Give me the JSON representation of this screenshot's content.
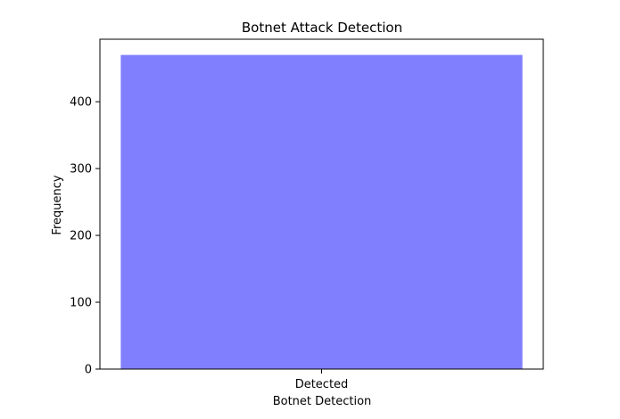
{
  "chart_data": {
    "type": "bar",
    "title": "Botnet Attack Detection",
    "xlabel": "Botnet Detection",
    "ylabel": "Frequency",
    "categories": [
      "Detected"
    ],
    "values": [
      470
    ],
    "ylim": [
      0,
      493.5
    ],
    "yticks": [
      0,
      100,
      200,
      300,
      400
    ],
    "ytick_labels": [
      "0",
      "100",
      "200",
      "300",
      "400"
    ],
    "bar_color": "#8080ff",
    "grid": false,
    "legend": "none"
  }
}
